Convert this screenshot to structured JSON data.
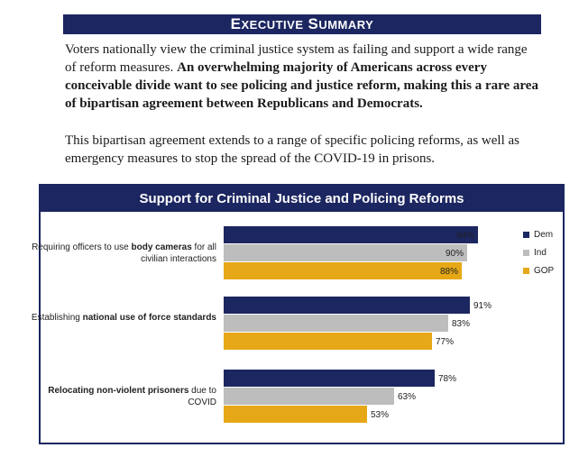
{
  "header": {
    "first_cap": "E",
    "first_rest": "XECUTIVE",
    "second_cap": "S",
    "second_rest": "UMMARY"
  },
  "intro": {
    "plain": "Voters nationally view the criminal justice system as failing and support a wide range of reform measures. ",
    "bold": "An overwhelming majority of Americans across every conceivable divide want to see policing and justice reform, making this a rare area of bipartisan agreement between Republicans and Democrats."
  },
  "second_paragraph": "This bipartisan agreement extends to a range of specific policing reforms, as well as emergency measures to stop the spread of the COVID-19 in prisons.",
  "chart_data": {
    "type": "bar",
    "orientation": "horizontal",
    "title": "Support for Criminal Justice and Policing Reforms",
    "categories": [
      {
        "parts": [
          {
            "text": "Requiring officers to use ",
            "bold": false
          },
          {
            "text": "body cameras",
            "bold": true
          },
          {
            "text": " for all civilian interactions",
            "bold": false
          }
        ]
      },
      {
        "parts": [
          {
            "text": "Establishing ",
            "bold": false
          },
          {
            "text": "national use of force standards",
            "bold": true
          }
        ]
      },
      {
        "parts": [
          {
            "text": "Relocating non-violent prisoners",
            "bold": true
          },
          {
            "text": " due to COVID",
            "bold": false
          }
        ]
      }
    ],
    "series": [
      {
        "name": "Dem",
        "color": "#1c2660",
        "values": [
          94,
          91,
          78
        ]
      },
      {
        "name": "Ind",
        "color": "#bdbdbd",
        "values": [
          90,
          83,
          63
        ]
      },
      {
        "name": "GOP",
        "color": "#e6a817",
        "values": [
          88,
          77,
          53
        ]
      }
    ],
    "value_suffix": "%",
    "legend": "top-right",
    "xlim": [
      0,
      100
    ],
    "grid": false
  }
}
